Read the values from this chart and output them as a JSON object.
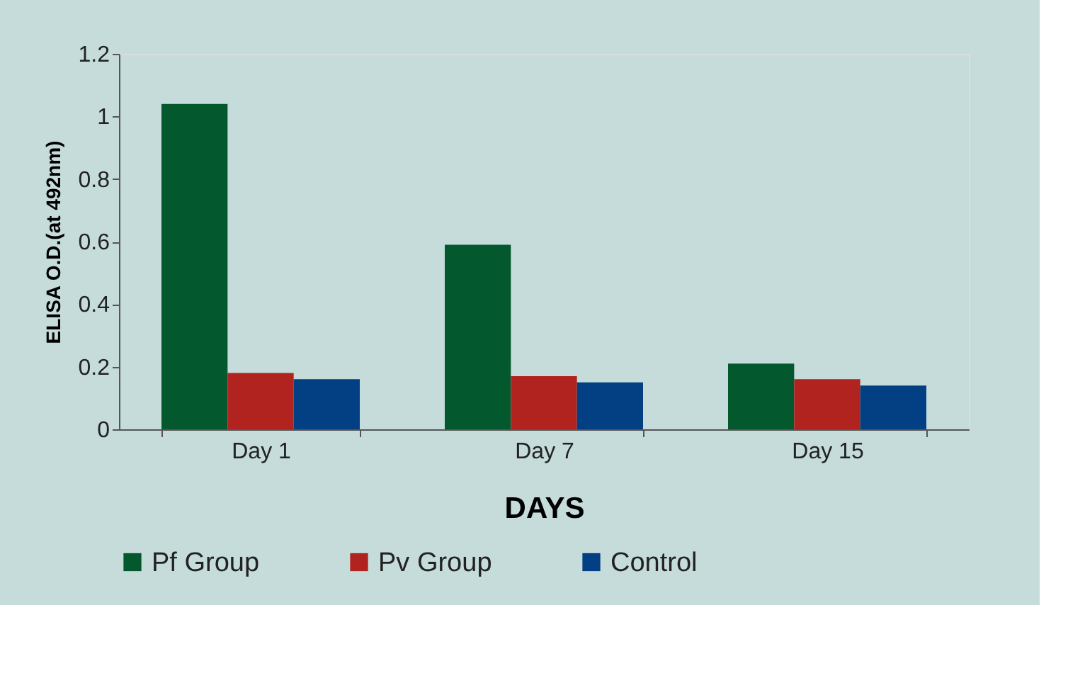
{
  "chart_data": {
    "type": "bar",
    "xlabel": "DAYS",
    "ylabel": "ELISA O.D.(at 492nm)",
    "categories": [
      "Day 1",
      "Day 7",
      "Day 15"
    ],
    "series": [
      {
        "name": "Pf Group",
        "color": "#04582d",
        "values": [
          1.04,
          0.59,
          0.21
        ]
      },
      {
        "name": "Pv Group",
        "color": "#b0231e",
        "values": [
          0.18,
          0.17,
          0.16
        ]
      },
      {
        "name": "Control",
        "color": "#023f83",
        "values": [
          0.16,
          0.15,
          0.14
        ]
      }
    ],
    "ylim": [
      0,
      1.2
    ],
    "yticks": [
      0,
      0.2,
      0.4,
      0.6,
      0.8,
      1,
      1.2
    ],
    "grid": false,
    "legend": "bottom"
  }
}
